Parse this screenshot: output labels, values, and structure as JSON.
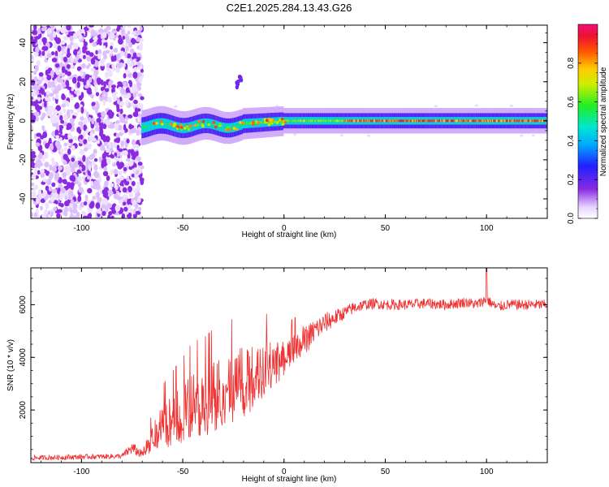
{
  "title": "C2E1.2025.284.13.43.G26",
  "chart_data": [
    {
      "type": "heatmap",
      "title": "C2E1.2025.284.13.43.G26",
      "xlabel": "Height of straight line (km)",
      "ylabel": "Frequency (Hz)",
      "xlim": [
        -125,
        130
      ],
      "ylim": [
        -50,
        49
      ],
      "xticks": [
        -100,
        -50,
        0,
        50,
        100
      ],
      "yticks": [
        -40,
        -20,
        0,
        20,
        40
      ],
      "colorbar": {
        "label": "Normalized spectral amplitude",
        "range": [
          0,
          1
        ],
        "ticks": [
          0.0,
          0.2,
          0.4,
          0.6,
          0.8
        ]
      },
      "features": [
        {
          "name": "noise-region",
          "x_range": [
            -125,
            -70
          ],
          "freq_range": [
            -50,
            49
          ],
          "amplitude": 0.15
        },
        {
          "name": "signal-line",
          "x_range": [
            -70,
            130
          ],
          "freq_center": [
            -3,
            0
          ],
          "amplitude_range": [
            0.25,
            1.0
          ]
        },
        {
          "name": "artifact",
          "x": -22,
          "freq": 20,
          "amplitude": 0.2
        }
      ]
    },
    {
      "type": "line",
      "xlabel": "Height of straight line (km)",
      "ylabel": "SNR (10 * v/v)",
      "xlim": [
        -125,
        130
      ],
      "ylim": [
        0,
        7400
      ],
      "xticks": [
        -100,
        -50,
        0,
        50,
        100
      ],
      "yticks": [
        2000,
        4000,
        6000
      ],
      "series": [
        {
          "name": "SNR",
          "color": "#ee3333",
          "x": [
            -125,
            -110,
            -100,
            -90,
            -80,
            -75,
            -70,
            -65,
            -60,
            -55,
            -50,
            -45,
            -40,
            -35,
            -30,
            -25,
            -20,
            -15,
            -10,
            -5,
            0,
            5,
            10,
            15,
            20,
            25,
            30,
            35,
            40,
            45,
            50,
            60,
            70,
            80,
            90,
            95,
            100,
            105,
            110,
            120,
            130
          ],
          "values": [
            180,
            200,
            220,
            230,
            250,
            550,
            300,
            800,
            1200,
            1400,
            1600,
            1900,
            2000,
            2200,
            2400,
            2600,
            2800,
            3000,
            3300,
            3600,
            3800,
            4200,
            4600,
            5000,
            5300,
            5500,
            5700,
            5900,
            6000,
            6050,
            6000,
            6000,
            6050,
            6000,
            6100,
            6000,
            6200,
            5900,
            6000,
            6000,
            6000
          ],
          "spread": [
            120,
            120,
            120,
            120,
            120,
            300,
            200,
            700,
            1100,
            1300,
            1500,
            1700,
            1700,
            1800,
            1800,
            1800,
            1800,
            1600,
            1500,
            1200,
            900,
            800,
            700,
            600,
            500,
            400,
            300,
            300,
            250,
            250,
            250,
            250,
            250,
            250,
            250,
            250,
            250,
            250,
            250,
            250,
            250
          ]
        }
      ]
    }
  ]
}
